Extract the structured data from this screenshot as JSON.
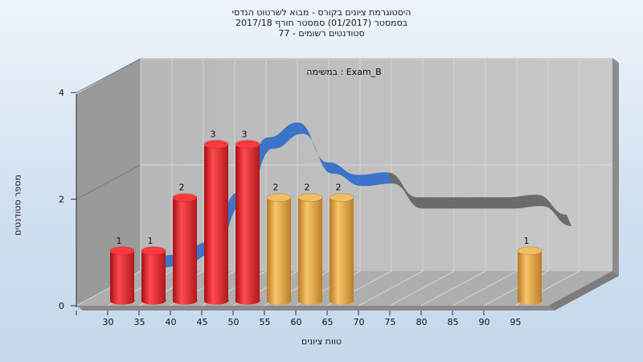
{
  "chart_data": {
    "type": "bar",
    "title_lines": [
      "היסטוגרמת ציונים בקורס - מבוא לשרטוט הנדסי",
      "בסמסטר  (01/2017)  סמסטר חורף 2017/18",
      "סטודנטים רשומים - 77"
    ],
    "annotation": "במשימה : Exam_B",
    "xlabel": "טווח ציונים",
    "ylabel": "מספר סטודנטים",
    "categories": [
      "30",
      "35",
      "40",
      "45",
      "50",
      "55",
      "60",
      "65",
      "70",
      "75",
      "80",
      "85",
      "90",
      "95"
    ],
    "values": [
      1,
      1,
      2,
      3,
      3,
      2,
      2,
      2,
      0,
      0,
      0,
      0,
      0,
      1
    ],
    "bar_colors": [
      "#e0262b",
      "#e0262b",
      "#e0262b",
      "#e0262b",
      "#e0262b",
      "#e0a848",
      "#e0a848",
      "#e0a848",
      "#e0a848",
      "#e0a848",
      "#e0a848",
      "#e0a848",
      "#e0a848",
      "#e0a848"
    ],
    "y_ticks": [
      "0",
      "2",
      "4"
    ],
    "ylim": [
      0,
      4
    ],
    "grid": true,
    "trend_line": {
      "values": [
        0.7,
        0.75,
        1.0,
        2.0,
        3.1,
        3.4,
        2.6,
        2.35,
        2.4,
        1.9,
        1.9,
        1.9,
        1.9,
        1.95,
        1.55
      ],
      "colors": [
        "#3470c8",
        "#666666"
      ]
    }
  }
}
